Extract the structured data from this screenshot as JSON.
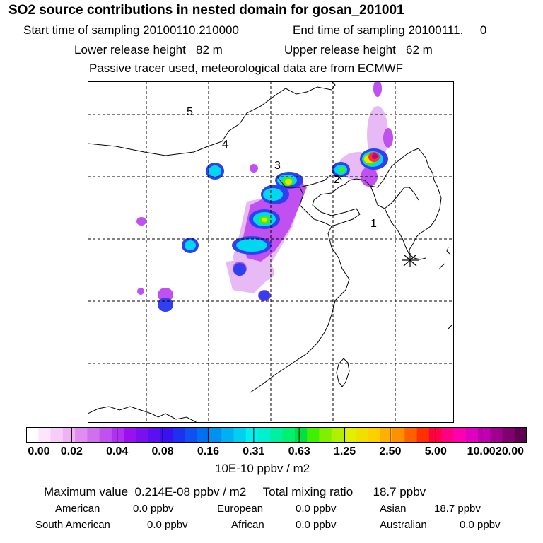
{
  "title": "SO2 source contributions in nested domain for gosan_201001",
  "header": {
    "start_label": "Start time of sampling 20100110.210000",
    "end_label": "End time of sampling 20100111.     0",
    "lower_label": "Lower release height   82 m",
    "upper_label": "Upper release height   62 m",
    "info": "Passive tracer used, meteorological data are from ECMWF"
  },
  "map": {
    "region_labels": [
      "1",
      "2",
      "3",
      "4",
      "5"
    ],
    "receptor_icon": "asterisk-receptor-icon"
  },
  "colorbar": {
    "ticks": [
      "0.00",
      "0.02",
      "0.04",
      "0.08",
      "0.16",
      "0.31",
      "0.63",
      "1.25",
      "2.50",
      "5.00",
      "10.00",
      "20.00"
    ],
    "colors": [
      "#ffffff",
      "#fbe6fb",
      "#f6cdf7",
      "#efb2f3",
      "#e08cf0",
      "#d070ef",
      "#c050f0",
      "#b030f0",
      "#9a10ee",
      "#7a10ee",
      "#5a10f0",
      "#3a10f0",
      "#2030f0",
      "#1050f0",
      "#0070f0",
      "#0090f0",
      "#00b0f0",
      "#00d0f0",
      "#00f0f0",
      "#00f0d0",
      "#00f0a0",
      "#00f070",
      "#00e040",
      "#40f000",
      "#80f000",
      "#b0f000",
      "#e0f000",
      "#f0e000",
      "#ffd000",
      "#ffb000",
      "#ff9000",
      "#ff6000",
      "#ff3000",
      "#ff0040",
      "#ff0080",
      "#ff00b0",
      "#e000c0",
      "#c000b0",
      "#a00090",
      "#800070",
      "#600050"
    ],
    "unit": "10E-10 ppbv / m2"
  },
  "summary": {
    "max_text": "Maximum value  0.214E-08 ppbv / m2     Total mixing ratio      18.7 ppbv",
    "regions": [
      {
        "name": "American",
        "value": "0.0 ppbv"
      },
      {
        "name": "European",
        "value": "0.0 ppbv"
      },
      {
        "name": "Asian",
        "value": "18.7 ppbv"
      },
      {
        "name": "South American",
        "value": "0.0 ppbv"
      },
      {
        "name": "African",
        "value": "0.0 ppbv"
      },
      {
        "name": "Australian",
        "value": "0.0 ppbv"
      }
    ]
  }
}
